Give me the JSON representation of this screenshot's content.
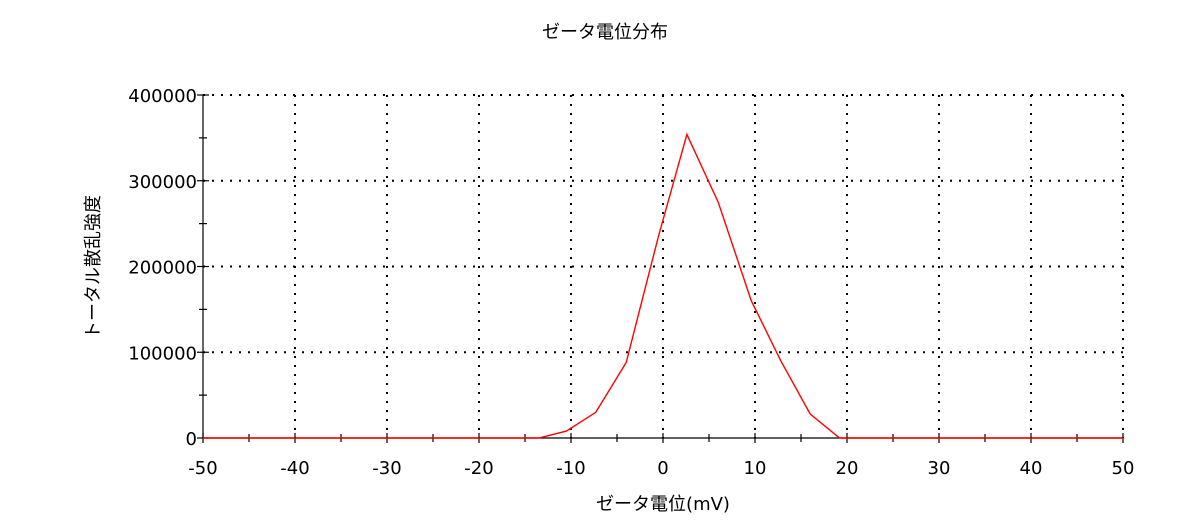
{
  "chart_data": {
    "type": "line",
    "title": "ゼータ電位分布",
    "xlabel": "ゼータ電位(mV)",
    "ylabel": "トータル散乱強度",
    "xlim": [
      -50,
      50
    ],
    "ylim": [
      0,
      400000
    ],
    "x_ticks": [
      "-50",
      "-40",
      "-30",
      "-20",
      "-10",
      "0",
      "10",
      "20",
      "30",
      "40",
      "50"
    ],
    "y_ticks": [
      "0",
      "100000",
      "200000",
      "300000",
      "400000"
    ],
    "grid": true,
    "line_color": "#ff0000",
    "series": [
      {
        "x": [
          -50,
          -46,
          -42,
          -38,
          -34,
          -30,
          -26,
          -22,
          -18,
          -14,
          -13.5,
          -10.5,
          -7.3,
          -4,
          -0.5,
          2.6,
          6,
          9.6,
          12.8,
          16,
          19.2,
          22,
          26,
          30,
          34,
          38,
          42,
          46,
          50
        ],
        "y": [
          0,
          0,
          0,
          0,
          0,
          0,
          0,
          0,
          0,
          0,
          0,
          8000,
          30000,
          88000,
          235000,
          354000,
          275000,
          160000,
          90000,
          28000,
          0,
          0,
          0,
          0,
          0,
          0,
          0,
          0,
          0
        ]
      }
    ]
  }
}
